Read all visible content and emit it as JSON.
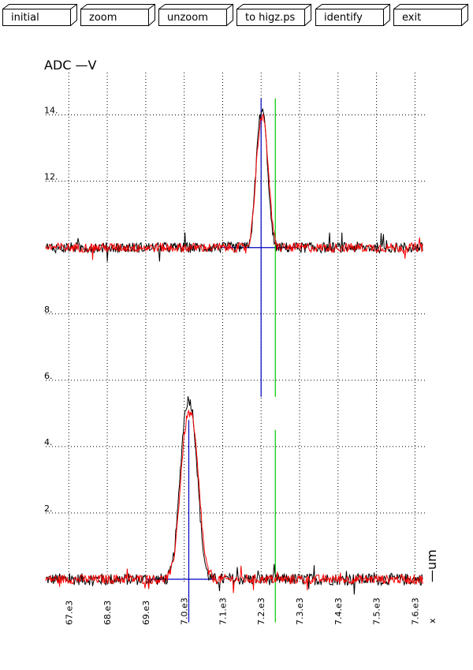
{
  "toolbar": {
    "buttons": [
      {
        "label": "initial"
      },
      {
        "label": "zoom"
      },
      {
        "label": "unzoom"
      },
      {
        "label": "to higz.ps"
      },
      {
        "label": "identify"
      },
      {
        "label": "exit"
      }
    ]
  },
  "chart_data": {
    "type": "line",
    "ylabel": "ADC  —V",
    "xlabel": "—um",
    "xaxis_name": "x",
    "xlim": [
      6640,
      7630
    ],
    "ylim": [
      0,
      14.8
    ],
    "yticks": [
      {
        "value": 2,
        "label": "2."
      },
      {
        "value": 4,
        "label": "4."
      },
      {
        "value": 6,
        "label": "6."
      },
      {
        "value": 8,
        "label": "8."
      },
      {
        "value": 12,
        "label": "12."
      },
      {
        "value": 14,
        "label": "14."
      }
    ],
    "xticks": [
      {
        "value": 6700,
        "label": "67.e3"
      },
      {
        "value": 6800,
        "label": "68.e3"
      },
      {
        "value": 6900,
        "label": "69.e3"
      },
      {
        "value": 7000,
        "label": "7.0.e3"
      },
      {
        "value": 7100,
        "label": "7.1.e3"
      },
      {
        "value": 7200,
        "label": "7.2.e3"
      },
      {
        "value": 7300,
        "label": "7.3.e3"
      },
      {
        "value": 7400,
        "label": "7.4.e3"
      },
      {
        "value": 7500,
        "label": "7.5.e3"
      },
      {
        "value": 7600,
        "label": "7.6.e3"
      }
    ],
    "grid": true,
    "baselines": [
      0,
      10
    ],
    "traces": [
      {
        "color": "#000000",
        "baseline": 0,
        "peak_x": 7012,
        "peak_height": 5.4,
        "peak_width": 22,
        "noise": 0.18
      },
      {
        "color": "#ff0000",
        "baseline": 0,
        "peak_x": 7014,
        "peak_height": 5.0,
        "peak_width": 23,
        "noise": 0.14
      },
      {
        "color": "#000000",
        "baseline": 10,
        "peak_x": 7202,
        "peak_height": 4.1,
        "peak_width": 15,
        "noise": 0.16
      },
      {
        "color": "#ff0000",
        "baseline": 10,
        "peak_x": 7203,
        "peak_height": 3.9,
        "peak_width": 16,
        "noise": 0.14
      }
    ],
    "markers": [
      {
        "color": "#0000c0",
        "x": 7012,
        "y_from": -1.3,
        "y_to": 4.8,
        "h_y": 0,
        "h_from": 6900,
        "h_to": 7080
      },
      {
        "color": "#0000c0",
        "x": 7200,
        "y_from": 5.5,
        "y_to": 14.5,
        "h_y": 10,
        "h_from": 7100,
        "h_to": 7290
      },
      {
        "color": "#00c800",
        "x": 7237,
        "y_from": -1.3,
        "y_to": 4.5
      },
      {
        "color": "#00c800",
        "x": 7237,
        "y_from": 5.5,
        "y_to": 14.5
      }
    ],
    "colors": {
      "grid": "#000000",
      "frame": "#000000"
    }
  }
}
